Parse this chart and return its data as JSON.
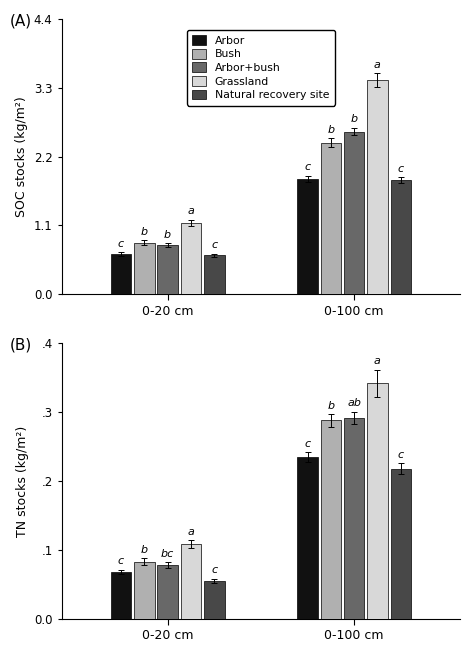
{
  "colors": [
    "#111111",
    "#b0b0b0",
    "#686868",
    "#d8d8d8",
    "#484848"
  ],
  "legend_labels": [
    "Arbor",
    "Bush",
    "Arbor+bush",
    "Grassland",
    "Natural recovery site"
  ],
  "panel_A": {
    "title": "(A)",
    "ylabel": "SOC stocks (kg/m²)",
    "ylim": [
      0.0,
      4.4
    ],
    "yticks": [
      0.0,
      1.1,
      2.2,
      3.3,
      4.4
    ],
    "ytick_labels": [
      "0.0",
      "1.1",
      "2.2",
      "3.3",
      "4.4"
    ],
    "group_labels": [
      "0-20 cm",
      "0-100 cm"
    ],
    "values": [
      [
        0.64,
        0.82,
        0.78,
        1.14,
        0.62
      ],
      [
        1.84,
        2.42,
        2.6,
        3.42,
        1.82
      ]
    ],
    "errors": [
      [
        0.03,
        0.04,
        0.03,
        0.05,
        0.03
      ],
      [
        0.05,
        0.07,
        0.06,
        0.11,
        0.05
      ]
    ],
    "sig_labels": [
      [
        "c",
        "b",
        "b",
        "a",
        "c"
      ],
      [
        "c",
        "b",
        "b",
        "a",
        "c"
      ]
    ]
  },
  "panel_B": {
    "title": "(B)",
    "ylabel": "TN stocks (kg/m²)",
    "ylim": [
      0.0,
      0.4
    ],
    "yticks": [
      0.0,
      0.1,
      0.2,
      0.3,
      0.4
    ],
    "ytick_labels": [
      "0.0",
      ".1",
      ".2",
      ".3",
      ".4"
    ],
    "group_labels": [
      "0-20 cm",
      "0-100 cm"
    ],
    "values": [
      [
        0.068,
        0.083,
        0.078,
        0.108,
        0.055
      ],
      [
        0.235,
        0.288,
        0.292,
        0.342,
        0.218
      ]
    ],
    "errors": [
      [
        0.003,
        0.005,
        0.004,
        0.006,
        0.003
      ],
      [
        0.007,
        0.009,
        0.009,
        0.02,
        0.008
      ]
    ],
    "sig_labels": [
      [
        "c",
        "b",
        "bc",
        "a",
        "c"
      ],
      [
        "c",
        "b",
        "ab",
        "a",
        "c"
      ]
    ]
  },
  "bar_width": 0.055,
  "group_centers": [
    0.28,
    0.72
  ],
  "figsize": [
    4.74,
    6.56
  ],
  "dpi": 100,
  "fontsize_label": 9,
  "fontsize_tick": 8.5,
  "fontsize_sig": 8,
  "fontsize_panel": 11
}
